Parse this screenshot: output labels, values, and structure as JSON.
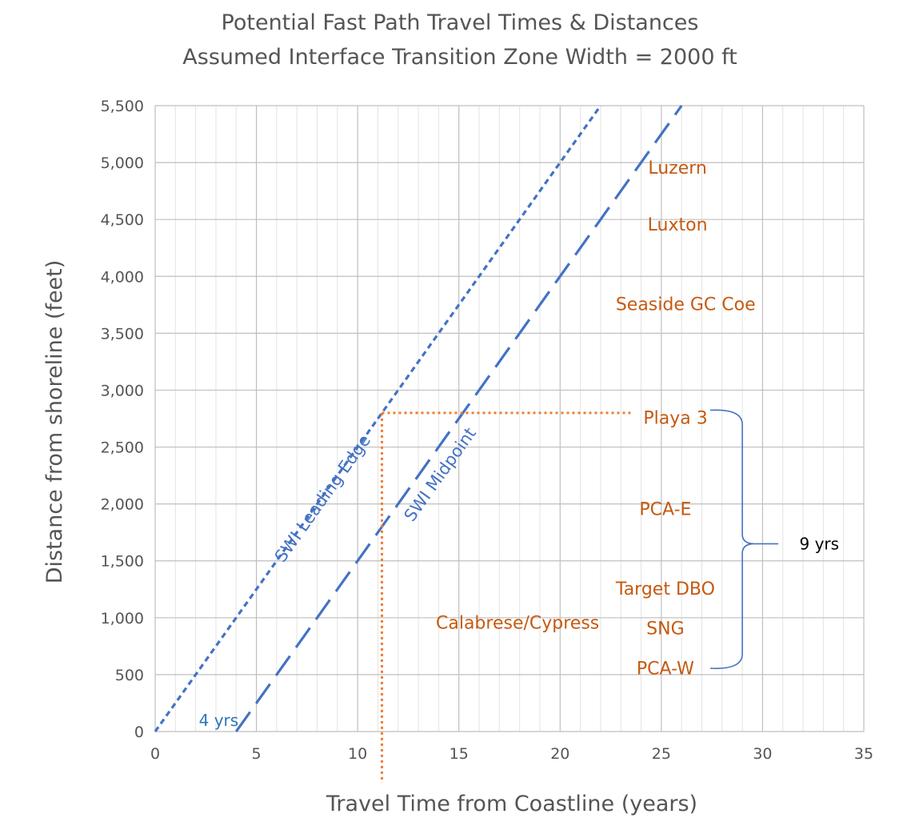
{
  "chart_data": {
    "type": "line",
    "title": "Potential Fast Path Travel Times & Distances",
    "subtitle": "Assumed Interface Transition Zone Width = 2000 ft",
    "xlabel": "Travel Time from Coastline (years)",
    "ylabel": "Distance from shoreline (feet)",
    "xlim": [
      0,
      35
    ],
    "ylim": [
      0,
      5500
    ],
    "xticks": [
      0,
      5,
      10,
      15,
      20,
      25,
      30,
      35
    ],
    "yticks": [
      0,
      500,
      1000,
      1500,
      2000,
      2500,
      3000,
      3500,
      4000,
      4500,
      5000,
      5500
    ],
    "ytick_labels": [
      "0",
      "500",
      "1,000",
      "1,500",
      "2,000",
      "2,500",
      "3,000",
      "3,500",
      "4,000",
      "4,500",
      "5,000",
      "5,500"
    ],
    "grid": true,
    "series": [
      {
        "name": "SWI Leading Edge",
        "color": "#4472C4",
        "dash": "short",
        "x": [
          0,
          22
        ],
        "y": [
          0,
          5500
        ]
      },
      {
        "name": "SWI Midpoint",
        "color": "#4472C4",
        "dash": "long",
        "x": [
          4,
          26
        ],
        "y": [
          0,
          5500
        ]
      }
    ],
    "reference_lines": [
      {
        "color": "#ED7D31",
        "x": [
          11.2,
          23.5
        ],
        "y": [
          2800,
          2800
        ]
      },
      {
        "color": "#ED7D31",
        "x": [
          11.2,
          11.2
        ],
        "y": [
          2800,
          -450
        ]
      }
    ],
    "wells": [
      {
        "label": "Luzern",
        "x": 25.8,
        "y": 4960
      },
      {
        "label": "Luxton",
        "x": 25.8,
        "y": 4460
      },
      {
        "label": "Seaside GC Coe",
        "x": 26.2,
        "y": 3760
      },
      {
        "label": "Playa 3",
        "x": 25.7,
        "y": 2760
      },
      {
        "label": "PCA-E",
        "x": 25.2,
        "y": 1960
      },
      {
        "label": "Target DBO",
        "x": 25.2,
        "y": 1260
      },
      {
        "label": "Calabrese/Cypress",
        "x": 17.9,
        "y": 960
      },
      {
        "label": "SNG",
        "x": 25.2,
        "y": 910
      },
      {
        "label": "PCA-W",
        "x": 25.2,
        "y": 560
      }
    ],
    "well_color": "#C55A11",
    "annotations": [
      {
        "label": "4 yrs",
        "x": 2.0,
        "y": 0
      },
      {
        "label": "9 yrs",
        "x": 32.8,
        "y": 1650
      }
    ],
    "bracket": {
      "x": 29.0,
      "y_top": 2810,
      "y_bottom": 570,
      "y_mid": 1650,
      "color": "#4472C4"
    }
  }
}
